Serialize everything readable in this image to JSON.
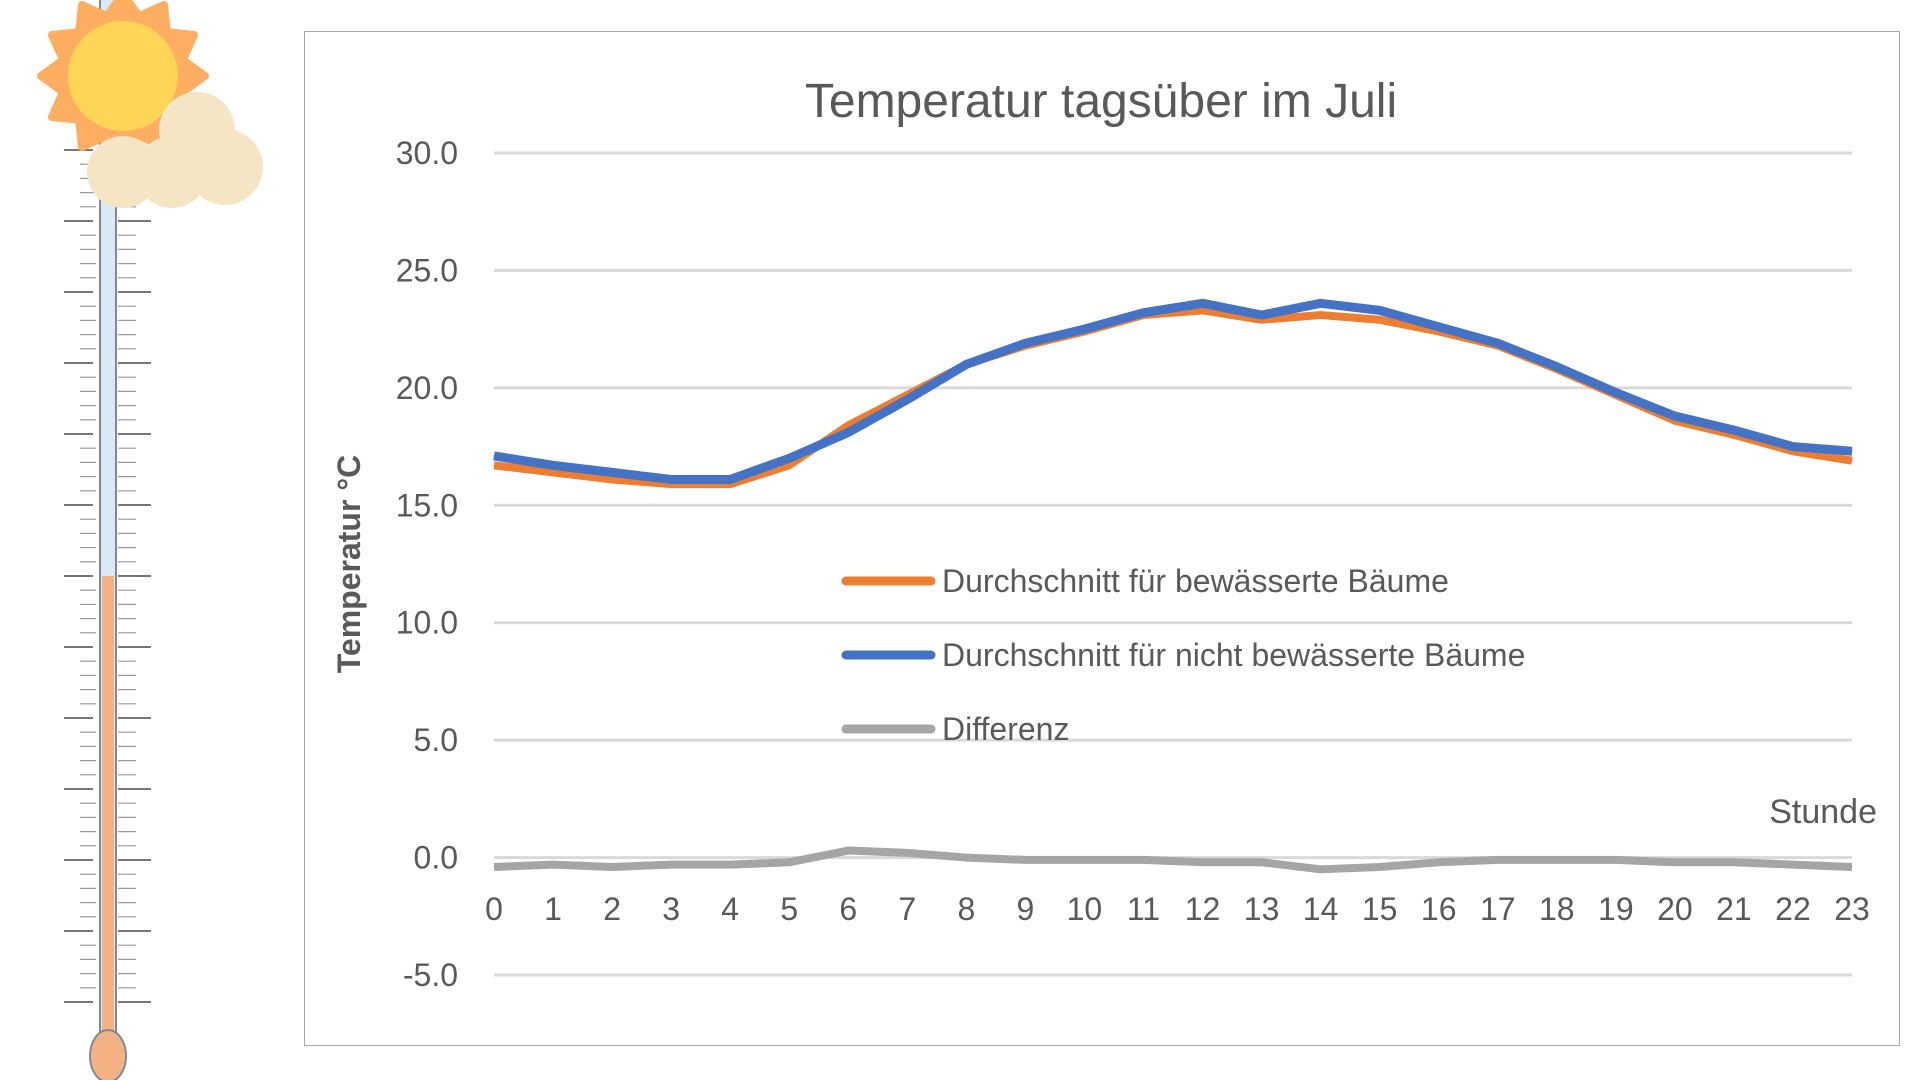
{
  "chart_data": {
    "type": "line",
    "title": "Temperatur tagsüber im Juli",
    "xlabel": "Stunde",
    "ylabel": "Temperatur °C",
    "x": [
      0,
      1,
      2,
      3,
      4,
      5,
      6,
      7,
      8,
      9,
      10,
      11,
      12,
      13,
      14,
      15,
      16,
      17,
      18,
      19,
      20,
      21,
      22,
      23
    ],
    "ylim": [
      -5,
      30
    ],
    "yticks": [
      "-5.0",
      "0.0",
      "5.0",
      "10.0",
      "15.0",
      "20.0",
      "25.0",
      "30.0"
    ],
    "grid": true,
    "legend_position": "center",
    "series": [
      {
        "name": "Durchschnitt für bewässerte Bäume",
        "color": "#ED7D31",
        "values": [
          16.7,
          16.4,
          16.1,
          15.9,
          15.9,
          16.7,
          18.4,
          19.7,
          21.0,
          21.8,
          22.4,
          23.1,
          23.3,
          22.9,
          23.1,
          22.9,
          22.4,
          21.8,
          20.8,
          19.7,
          18.6,
          18.0,
          17.3,
          16.9
        ]
      },
      {
        "name": "Durchschnitt für nicht bewässerte Bäume",
        "color": "#4472C4",
        "values": [
          17.1,
          16.7,
          16.4,
          16.1,
          16.1,
          17.0,
          18.1,
          19.5,
          21.0,
          21.9,
          22.5,
          23.2,
          23.6,
          23.1,
          23.6,
          23.3,
          22.6,
          21.9,
          20.9,
          19.8,
          18.8,
          18.2,
          17.5,
          17.3
        ]
      },
      {
        "name": "Differenz",
        "color": "#A5A5A5",
        "values": [
          -0.4,
          -0.3,
          -0.4,
          -0.3,
          -0.3,
          -0.2,
          0.3,
          0.2,
          0.0,
          -0.1,
          -0.1,
          -0.1,
          -0.2,
          -0.2,
          -0.5,
          -0.4,
          -0.2,
          -0.1,
          -0.1,
          -0.1,
          -0.2,
          -0.2,
          -0.3,
          -0.4
        ]
      }
    ]
  },
  "decoration": {
    "thermometer_fill_color": "#F4B183",
    "sun_color": "#FFD557",
    "sun_rays_color": "#FDAE61",
    "cloud_color": "#F5E5C4"
  }
}
